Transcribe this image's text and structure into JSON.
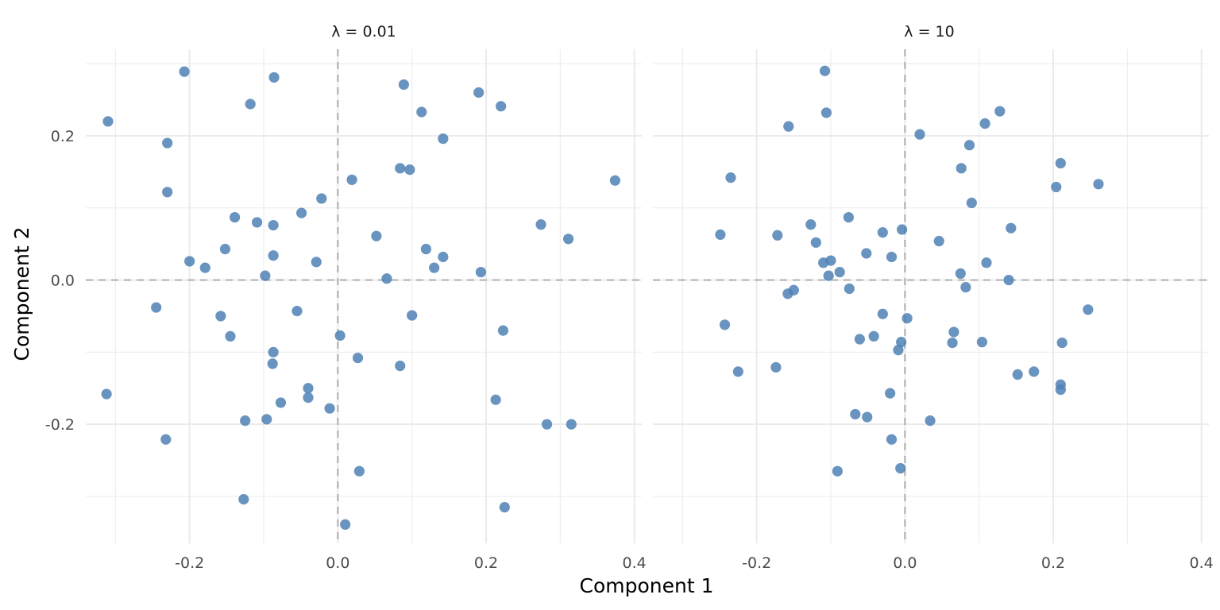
{
  "chart_data": {
    "type": "scatter",
    "xlabel": "Component 1",
    "ylabel": "Component 2",
    "xlim": [
      -0.34,
      0.41
    ],
    "ylim": [
      -0.365,
      0.32
    ],
    "x_ticks": [
      -0.2,
      0.0,
      0.2,
      0.4
    ],
    "x_tick_labels": [
      "-0.2",
      "0.0",
      "0.2",
      "0.4"
    ],
    "y_ticks": [
      -0.2,
      0.0,
      0.2
    ],
    "y_tick_labels": [
      "-0.2",
      "0.0",
      "0.2"
    ],
    "grid": true,
    "reference_lines": {
      "x": 0,
      "y": 0,
      "style": "dashed"
    },
    "point_color": "#4f81b5",
    "panels": [
      {
        "label": "λ = 0.01",
        "points": [
          [
            -0.31,
            0.22
          ],
          [
            -0.207,
            0.289
          ],
          [
            -0.086,
            0.281
          ],
          [
            -0.118,
            0.244
          ],
          [
            -0.23,
            0.19
          ],
          [
            -0.23,
            0.122
          ],
          [
            -0.139,
            0.087
          ],
          [
            -0.109,
            0.08
          ],
          [
            -0.087,
            0.076
          ],
          [
            -0.049,
            0.093
          ],
          [
            -0.022,
            0.113
          ],
          [
            0.019,
            0.139
          ],
          [
            0.089,
            0.271
          ],
          [
            0.113,
            0.233
          ],
          [
            0.19,
            0.26
          ],
          [
            0.22,
            0.241
          ],
          [
            0.142,
            0.196
          ],
          [
            0.084,
            0.155
          ],
          [
            0.097,
            0.153
          ],
          [
            0.374,
            0.138
          ],
          [
            -0.2,
            0.026
          ],
          [
            -0.179,
            0.017
          ],
          [
            -0.152,
            0.043
          ],
          [
            -0.087,
            0.034
          ],
          [
            -0.098,
            0.006
          ],
          [
            -0.029,
            0.025
          ],
          [
            0.052,
            0.061
          ],
          [
            0.119,
            0.043
          ],
          [
            0.142,
            0.032
          ],
          [
            0.13,
            0.017
          ],
          [
            0.066,
            0.002
          ],
          [
            0.193,
            0.011
          ],
          [
            0.274,
            0.077
          ],
          [
            0.311,
            0.057
          ],
          [
            -0.245,
            -0.038
          ],
          [
            -0.158,
            -0.05
          ],
          [
            -0.145,
            -0.078
          ],
          [
            -0.055,
            -0.043
          ],
          [
            0.003,
            -0.077
          ],
          [
            0.1,
            -0.049
          ],
          [
            0.223,
            -0.07
          ],
          [
            -0.087,
            -0.1
          ],
          [
            -0.088,
            -0.116
          ],
          [
            0.027,
            -0.108
          ],
          [
            0.084,
            -0.119
          ],
          [
            -0.04,
            -0.15
          ],
          [
            -0.04,
            -0.163
          ],
          [
            -0.077,
            -0.17
          ],
          [
            -0.011,
            -0.178
          ],
          [
            -0.125,
            -0.195
          ],
          [
            -0.096,
            -0.193
          ],
          [
            0.213,
            -0.166
          ],
          [
            0.282,
            -0.2
          ],
          [
            0.315,
            -0.2
          ],
          [
            -0.312,
            -0.158
          ],
          [
            -0.232,
            -0.221
          ],
          [
            0.029,
            -0.265
          ],
          [
            -0.127,
            -0.304
          ],
          [
            0.01,
            -0.339
          ],
          [
            0.225,
            -0.315
          ]
        ]
      },
      {
        "label": "λ = 10",
        "points": [
          [
            -0.108,
            0.29
          ],
          [
            -0.106,
            0.232
          ],
          [
            -0.157,
            0.213
          ],
          [
            0.02,
            0.202
          ],
          [
            0.108,
            0.217
          ],
          [
            0.128,
            0.234
          ],
          [
            0.087,
            0.187
          ],
          [
            0.076,
            0.155
          ],
          [
            0.21,
            0.162
          ],
          [
            -0.235,
            0.142
          ],
          [
            0.204,
            0.129
          ],
          [
            0.261,
            0.133
          ],
          [
            0.09,
            0.107
          ],
          [
            -0.249,
            0.063
          ],
          [
            -0.172,
            0.062
          ],
          [
            -0.127,
            0.077
          ],
          [
            -0.076,
            0.087
          ],
          [
            -0.03,
            0.066
          ],
          [
            -0.004,
            0.07
          ],
          [
            0.046,
            0.054
          ],
          [
            0.143,
            0.072
          ],
          [
            -0.12,
            0.052
          ],
          [
            -0.052,
            0.037
          ],
          [
            -0.018,
            0.032
          ],
          [
            -0.11,
            0.024
          ],
          [
            -0.1,
            0.027
          ],
          [
            -0.088,
            0.011
          ],
          [
            -0.103,
            0.006
          ],
          [
            0.075,
            0.009
          ],
          [
            0.11,
            0.024
          ],
          [
            0.14,
            0.0
          ],
          [
            -0.158,
            -0.019
          ],
          [
            -0.15,
            -0.014
          ],
          [
            -0.075,
            -0.012
          ],
          [
            0.082,
            -0.01
          ],
          [
            -0.03,
            -0.047
          ],
          [
            0.003,
            -0.053
          ],
          [
            -0.243,
            -0.062
          ],
          [
            -0.061,
            -0.082
          ],
          [
            -0.042,
            -0.078
          ],
          [
            0.066,
            -0.072
          ],
          [
            0.064,
            -0.087
          ],
          [
            0.104,
            -0.086
          ],
          [
            -0.005,
            -0.086
          ],
          [
            -0.009,
            -0.097
          ],
          [
            0.212,
            -0.087
          ],
          [
            0.247,
            -0.041
          ],
          [
            -0.225,
            -0.127
          ],
          [
            -0.174,
            -0.121
          ],
          [
            0.152,
            -0.131
          ],
          [
            0.174,
            -0.127
          ],
          [
            0.21,
            -0.145
          ],
          [
            0.21,
            -0.152
          ],
          [
            -0.02,
            -0.157
          ],
          [
            -0.067,
            -0.186
          ],
          [
            -0.051,
            -0.19
          ],
          [
            0.034,
            -0.195
          ],
          [
            -0.018,
            -0.221
          ],
          [
            -0.006,
            -0.261
          ],
          [
            -0.091,
            -0.265
          ]
        ]
      }
    ]
  }
}
